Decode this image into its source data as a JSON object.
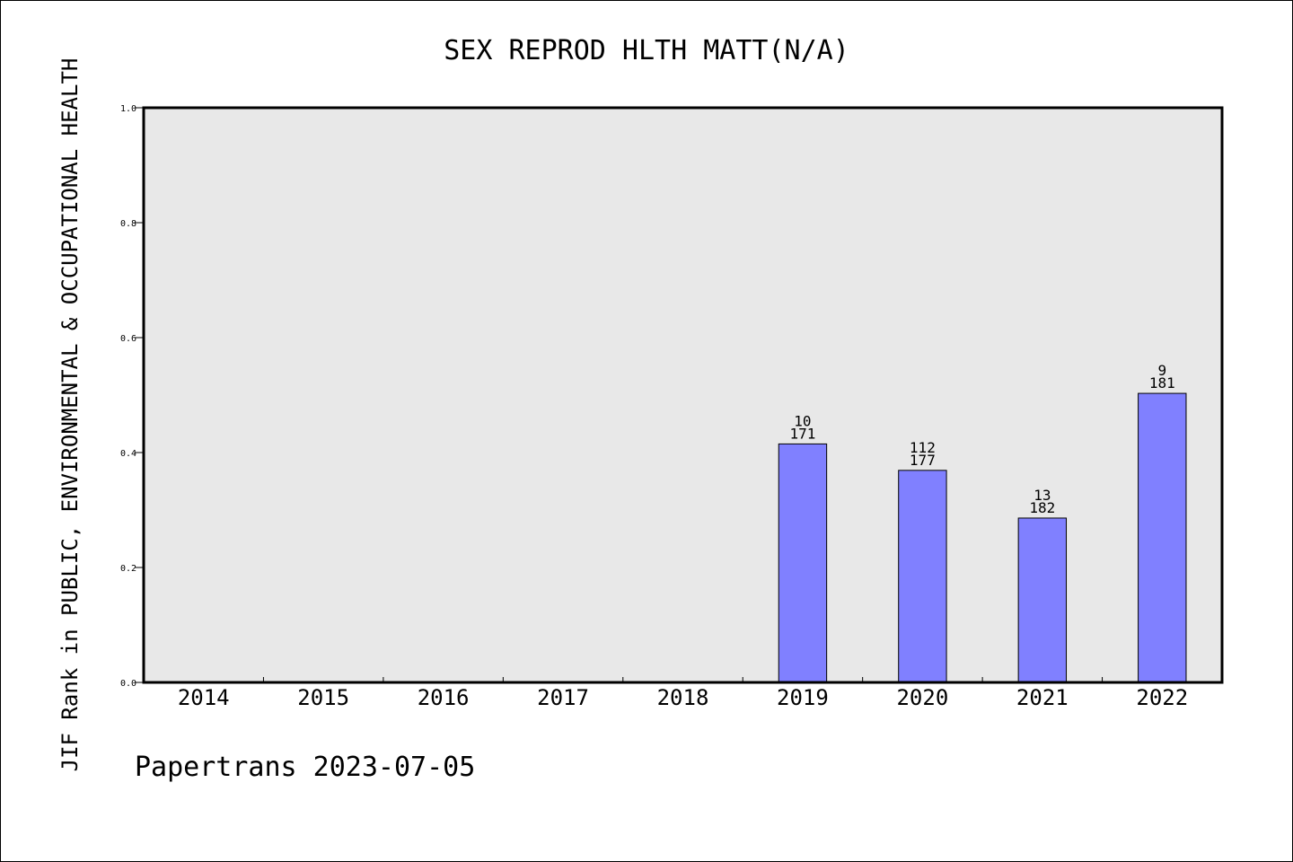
{
  "chart_data": {
    "type": "bar",
    "title": "SEX REPROD HLTH MATT(N/A)",
    "ylabel": "JIF Rank in PUBLIC, ENVIRONMENTAL & OCCUPATIONAL HEALTH",
    "xlabel": "",
    "ylim": [
      0,
      1.0
    ],
    "yticks": [
      "0.0",
      "0.2",
      "0.4",
      "0.6",
      "0.8",
      "1.0"
    ],
    "categories": [
      "2014",
      "2015",
      "2016",
      "2017",
      "2018",
      "2019",
      "2020",
      "2021",
      "2022"
    ],
    "values": [
      null,
      null,
      null,
      null,
      null,
      0.415,
      0.369,
      0.286,
      0.503
    ],
    "labels": [
      null,
      null,
      null,
      null,
      null,
      {
        "rank": "10",
        "total": "171"
      },
      {
        "rank": "112",
        "total": "177"
      },
      {
        "rank": "13",
        "total": "182"
      },
      {
        "rank": "9",
        "total": "181"
      }
    ],
    "grid": false,
    "colors": {
      "bar": "#8080ff",
      "plot_background": "#e8e8e8"
    }
  },
  "footer": "Papertrans 2023-07-05"
}
